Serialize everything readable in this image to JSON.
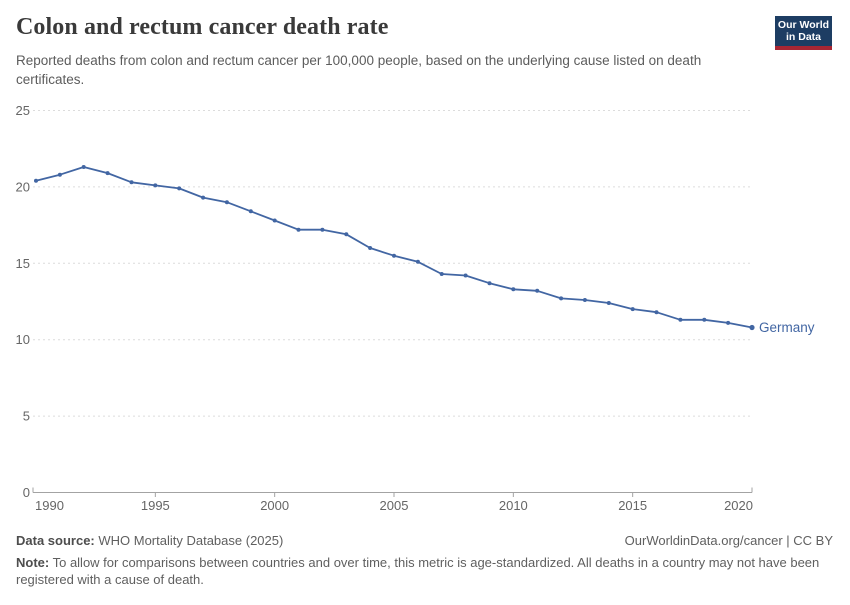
{
  "header": {
    "title": "Colon and rectum cancer death rate",
    "subtitle": "Reported deaths from colon and rectum cancer per 100,000 people, based on the underlying cause listed on death certificates.",
    "logo": {
      "line1": "Our World",
      "line2": "in Data",
      "bg_color": "#1d3d63",
      "bar_color": "#a82633"
    }
  },
  "chart_data": {
    "type": "line",
    "title": "Colon and rectum cancer death rate",
    "x": [
      1990,
      1991,
      1992,
      1993,
      1994,
      1995,
      1996,
      1997,
      1998,
      1999,
      2000,
      2001,
      2002,
      2003,
      2004,
      2005,
      2006,
      2007,
      2008,
      2009,
      2010,
      2011,
      2012,
      2013,
      2014,
      2015,
      2016,
      2017,
      2018,
      2019,
      2020
    ],
    "series": [
      {
        "name": "Germany",
        "color": "#4266a3",
        "values": [
          20.4,
          20.8,
          21.3,
          20.9,
          20.3,
          20.1,
          19.9,
          19.3,
          19.0,
          18.4,
          17.8,
          17.2,
          17.2,
          16.9,
          16.0,
          15.5,
          15.1,
          14.3,
          14.2,
          13.7,
          13.3,
          13.2,
          12.7,
          12.6,
          12.4,
          12.0,
          11.8,
          11.3,
          11.3,
          11.1,
          10.8
        ]
      }
    ],
    "xticks": [
      1990,
      1995,
      2000,
      2005,
      2010,
      2015,
      2020
    ],
    "yticks": [
      0,
      5,
      10,
      15,
      20,
      25
    ],
    "xlim": [
      1990,
      2020
    ],
    "ylim": [
      0,
      25
    ],
    "grid": "horizontal-dashed",
    "legend_position": "end-of-line-label",
    "colors": {
      "grid": "#dcdcdc",
      "axis": "#a3a3a3",
      "tick_text": "#666666"
    }
  },
  "footer": {
    "datasource_label": "Data source:",
    "datasource_value": " WHO Mortality Database (2025)",
    "link": "OurWorldinData.org/cancer",
    "separator": " | ",
    "license": "CC BY",
    "note_label": "Note:",
    "note_value": " To allow for comparisons between countries and over time, this metric is age-standardized. All deaths in a country may not have been registered with a cause of death."
  }
}
